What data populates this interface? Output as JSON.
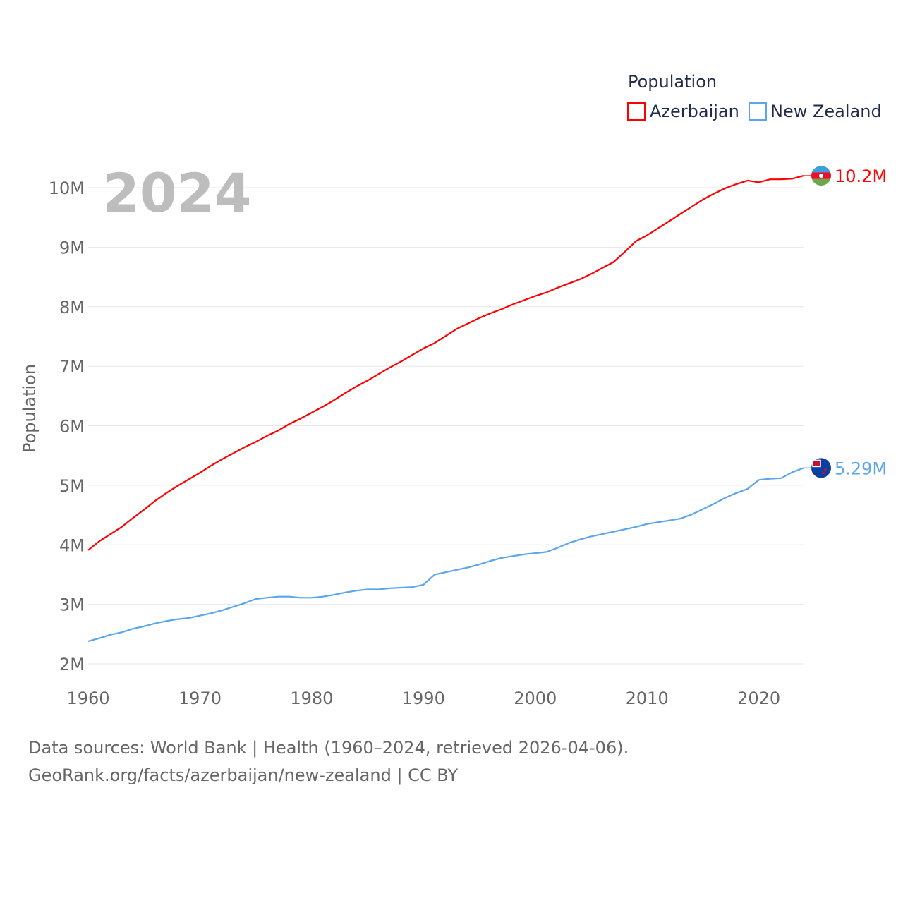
{
  "chart_data": {
    "type": "line",
    "year_label": "2024",
    "ylabel": "Population",
    "legend_title": "Population",
    "legend_position": "top-right",
    "ylim": [
      2000000,
      10000000
    ],
    "xlim": [
      1960,
      2024
    ],
    "grid": true,
    "y_ticks": [
      {
        "v": 2,
        "label": "2M"
      },
      {
        "v": 3,
        "label": "3M"
      },
      {
        "v": 4,
        "label": "4M"
      },
      {
        "v": 5,
        "label": "5M"
      },
      {
        "v": 6,
        "label": "6M"
      },
      {
        "v": 7,
        "label": "7M"
      },
      {
        "v": 8,
        "label": "8M"
      },
      {
        "v": 9,
        "label": "9M"
      },
      {
        "v": 10,
        "label": "10M"
      }
    ],
    "x_ticks": [
      {
        "v": 1960,
        "label": "1960"
      },
      {
        "v": 1970,
        "label": "1970"
      },
      {
        "v": 1980,
        "label": "1980"
      },
      {
        "v": 1990,
        "label": "1990"
      },
      {
        "v": 2000,
        "label": "2000"
      },
      {
        "v": 2010,
        "label": "2010"
      },
      {
        "v": 2020,
        "label": "2020"
      }
    ],
    "x_start": 1960,
    "units": "millions",
    "series": [
      {
        "name": "Azerbaijan",
        "color": "#ff0000",
        "end_label": "10.2M",
        "values": [
          3.91,
          4.06,
          4.18,
          4.3,
          4.45,
          4.59,
          4.74,
          4.87,
          4.99,
          5.1,
          5.21,
          5.33,
          5.44,
          5.54,
          5.64,
          5.73,
          5.83,
          5.92,
          6.03,
          6.12,
          6.22,
          6.32,
          6.43,
          6.55,
          6.66,
          6.76,
          6.87,
          6.98,
          7.08,
          7.19,
          7.3,
          7.39,
          7.51,
          7.63,
          7.72,
          7.81,
          7.89,
          7.96,
          8.04,
          8.11,
          8.18,
          8.24,
          8.32,
          8.39,
          8.46,
          8.55,
          8.65,
          8.75,
          8.92,
          9.1,
          9.2,
          9.32,
          9.44,
          9.56,
          9.68,
          9.8,
          9.9,
          9.99,
          10.06,
          10.12,
          10.09,
          10.14,
          10.14,
          10.15,
          10.2
        ]
      },
      {
        "name": "New Zealand",
        "color": "#5aa5ee",
        "end_label": "5.29M",
        "values": [
          2.38,
          2.43,
          2.49,
          2.53,
          2.59,
          2.63,
          2.68,
          2.72,
          2.75,
          2.77,
          2.81,
          2.85,
          2.9,
          2.96,
          3.02,
          3.09,
          3.11,
          3.13,
          3.13,
          3.11,
          3.11,
          3.13,
          3.16,
          3.2,
          3.23,
          3.25,
          3.25,
          3.27,
          3.28,
          3.29,
          3.33,
          3.5,
          3.54,
          3.58,
          3.62,
          3.67,
          3.73,
          3.78,
          3.81,
          3.84,
          3.86,
          3.88,
          3.95,
          4.03,
          4.09,
          4.14,
          4.18,
          4.22,
          4.26,
          4.3,
          4.35,
          4.38,
          4.41,
          4.44,
          4.51,
          4.6,
          4.69,
          4.79,
          4.87,
          4.94,
          5.09,
          5.11,
          5.12,
          5.22,
          5.29
        ]
      }
    ]
  },
  "footer": {
    "line1": "Data sources: World Bank | Health (1960–2024, retrieved 2026-04-06).",
    "line2": "GeoRank.org/facts/azerbaijan/new-zealand | CC BY"
  }
}
